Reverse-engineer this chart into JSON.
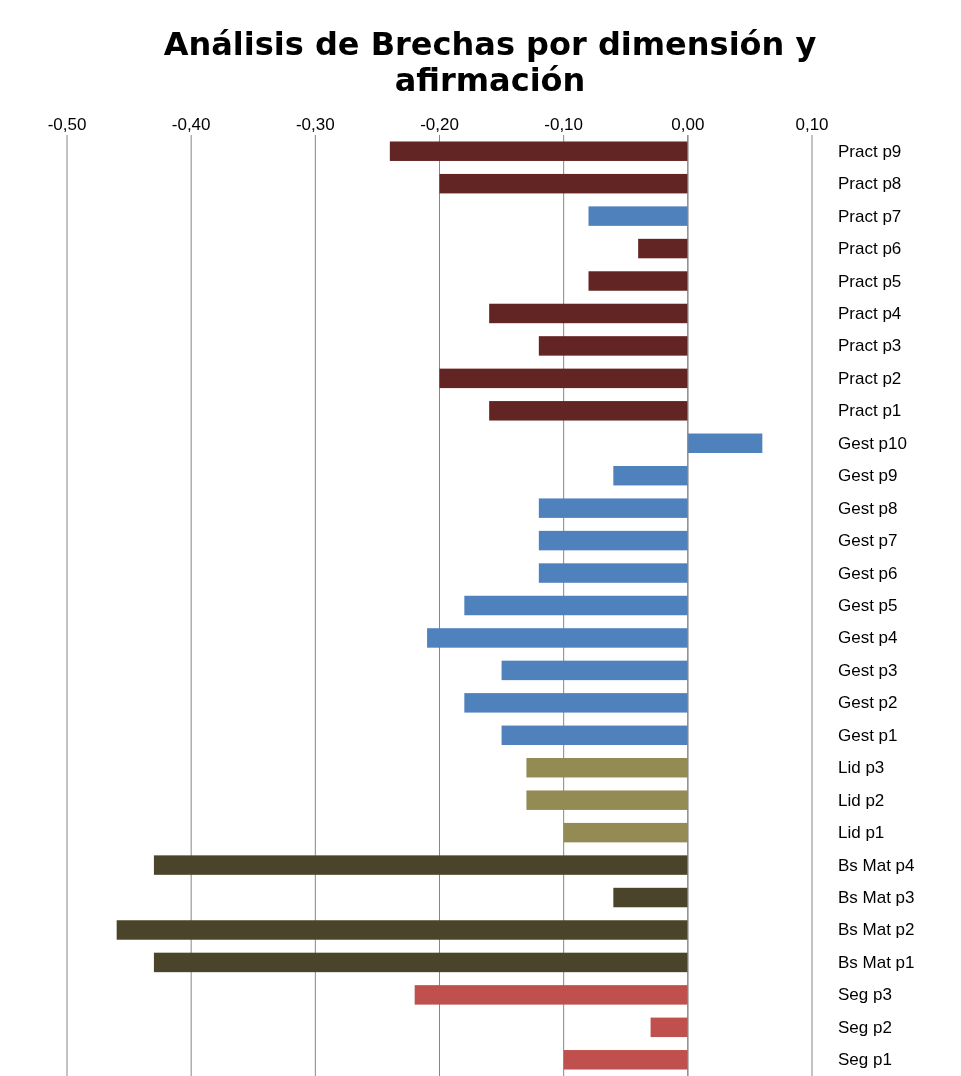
{
  "chart_data": {
    "type": "bar",
    "orientation": "horizontal",
    "title": "Análisis de Brechas por dimensión y afirmación",
    "categories": [
      "Pract p9",
      "Pract p8",
      "Pract p7",
      "Pract p6",
      "Pract p5",
      "Pract p4",
      "Pract p3",
      "Pract p2",
      "Pract p1",
      "Gest p10",
      "Gest p9",
      "Gest p8",
      "Gest p7",
      "Gest p6",
      "Gest p5",
      "Gest p4",
      "Gest p3",
      "Gest p2",
      "Gest p1",
      "Lid p3",
      "Lid p2",
      "Lid p1",
      "Bs Mat p4",
      "Bs Mat p3",
      "Bs Mat p2",
      "Bs Mat p1",
      "Seg p3",
      "Seg p2",
      "Seg p1"
    ],
    "values": [
      -0.24,
      -0.2,
      -0.08,
      -0.04,
      -0.08,
      -0.16,
      -0.12,
      -0.2,
      -0.16,
      0.06,
      -0.06,
      -0.12,
      -0.12,
      -0.12,
      -0.18,
      -0.21,
      -0.15,
      -0.18,
      -0.15,
      -0.13,
      -0.13,
      -0.1,
      -0.43,
      -0.06,
      -0.46,
      -0.43,
      -0.22,
      -0.03,
      -0.1
    ],
    "colors": [
      "#632523",
      "#632523",
      "#4f81bd",
      "#632523",
      "#632523",
      "#632523",
      "#632523",
      "#632523",
      "#632523",
      "#4f81bd",
      "#4f81bd",
      "#4f81bd",
      "#4f81bd",
      "#4f81bd",
      "#4f81bd",
      "#4f81bd",
      "#4f81bd",
      "#4f81bd",
      "#4f81bd",
      "#948a54",
      "#948a54",
      "#948a54",
      "#4a452a",
      "#4a452a",
      "#4a452a",
      "#4a452a",
      "#c0504d",
      "#c0504d",
      "#c0504d"
    ],
    "xlim": [
      -0.5,
      0.1
    ],
    "xticks": [
      {
        "value": -0.5,
        "label": "-0,50"
      },
      {
        "value": -0.4,
        "label": "-0,40"
      },
      {
        "value": -0.3,
        "label": "-0,30"
      },
      {
        "value": -0.2,
        "label": "-0,20"
      },
      {
        "value": -0.1,
        "label": "-0,10"
      },
      {
        "value": 0,
        "label": "0,00"
      },
      {
        "value": 0.1,
        "label": "0,10"
      }
    ],
    "grid": "x"
  }
}
